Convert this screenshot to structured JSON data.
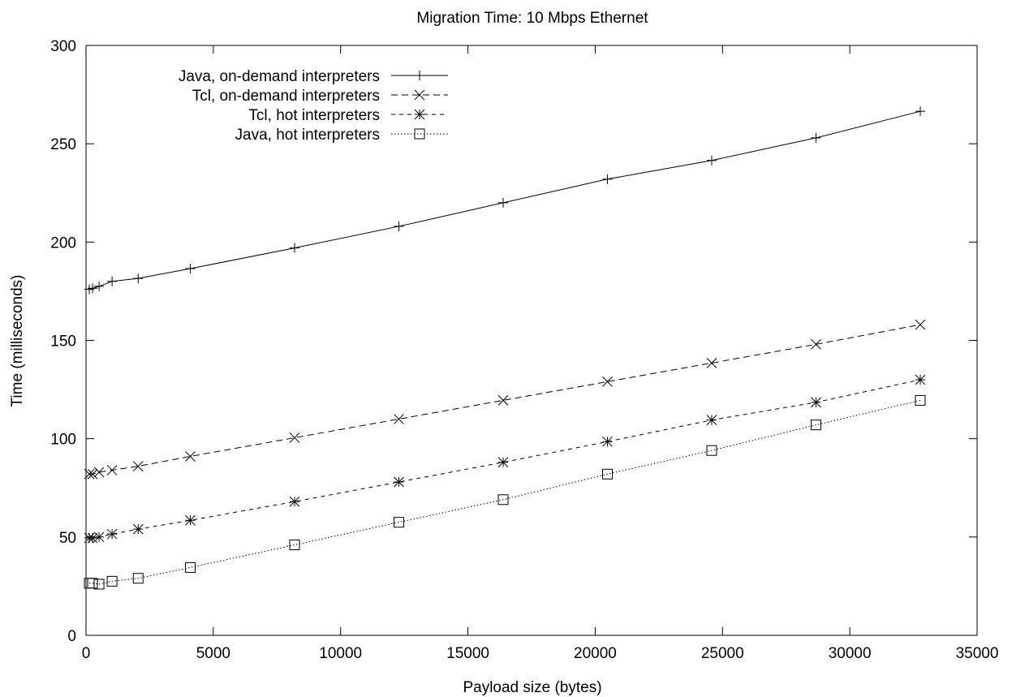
{
  "chart_data": {
    "type": "line",
    "title": "Migration Time: 10 Mbps Ethernet",
    "xlabel": "Payload size (bytes)",
    "ylabel": "Time (milliseconds)",
    "xlim": [
      0,
      35000
    ],
    "ylim": [
      0,
      300
    ],
    "xticks": [
      0,
      5000,
      10000,
      15000,
      20000,
      25000,
      30000,
      35000
    ],
    "yticks": [
      0,
      50,
      100,
      150,
      200,
      250,
      300
    ],
    "grid": false,
    "legend_position": "top-left",
    "series": [
      {
        "name": "Java, on-demand interpreters",
        "marker": "plus",
        "dash": "solid",
        "x": [
          128,
          256,
          512,
          1024,
          2048,
          4096,
          8192,
          12288,
          16384,
          20480,
          24576,
          28672,
          32768
        ],
        "y": [
          176,
          176.5,
          177.5,
          180,
          181.5,
          186.5,
          197,
          208,
          220,
          232,
          241.5,
          253,
          266.5
        ]
      },
      {
        "name": "Tcl, on-demand interpreters",
        "marker": "cross",
        "dash": "dashed",
        "x": [
          128,
          256,
          512,
          1024,
          2048,
          4096,
          8192,
          12288,
          16384,
          20480,
          24576,
          28672,
          32768
        ],
        "y": [
          82,
          82,
          83,
          84,
          86,
          91,
          100.5,
          110,
          119.5,
          129,
          138.5,
          148,
          158
        ]
      },
      {
        "name": "Tcl, hot interpreters",
        "marker": "star",
        "dash": "short-dashed",
        "x": [
          128,
          256,
          512,
          1024,
          2048,
          4096,
          8192,
          12288,
          16384,
          20480,
          24576,
          28672,
          32768
        ],
        "y": [
          49.5,
          49.5,
          50,
          51.5,
          54,
          58.5,
          68,
          78,
          88,
          98.5,
          109.5,
          118.5,
          130
        ]
      },
      {
        "name": "Java, hot interpreters",
        "marker": "square",
        "dash": "dotted",
        "x": [
          128,
          256,
          512,
          1024,
          2048,
          4096,
          8192,
          12288,
          16384,
          20480,
          24576,
          28672,
          32768
        ],
        "y": [
          26.5,
          26.5,
          26,
          27.5,
          29,
          34.5,
          46,
          57.5,
          69,
          82,
          94,
          107,
          119.5
        ]
      }
    ]
  }
}
